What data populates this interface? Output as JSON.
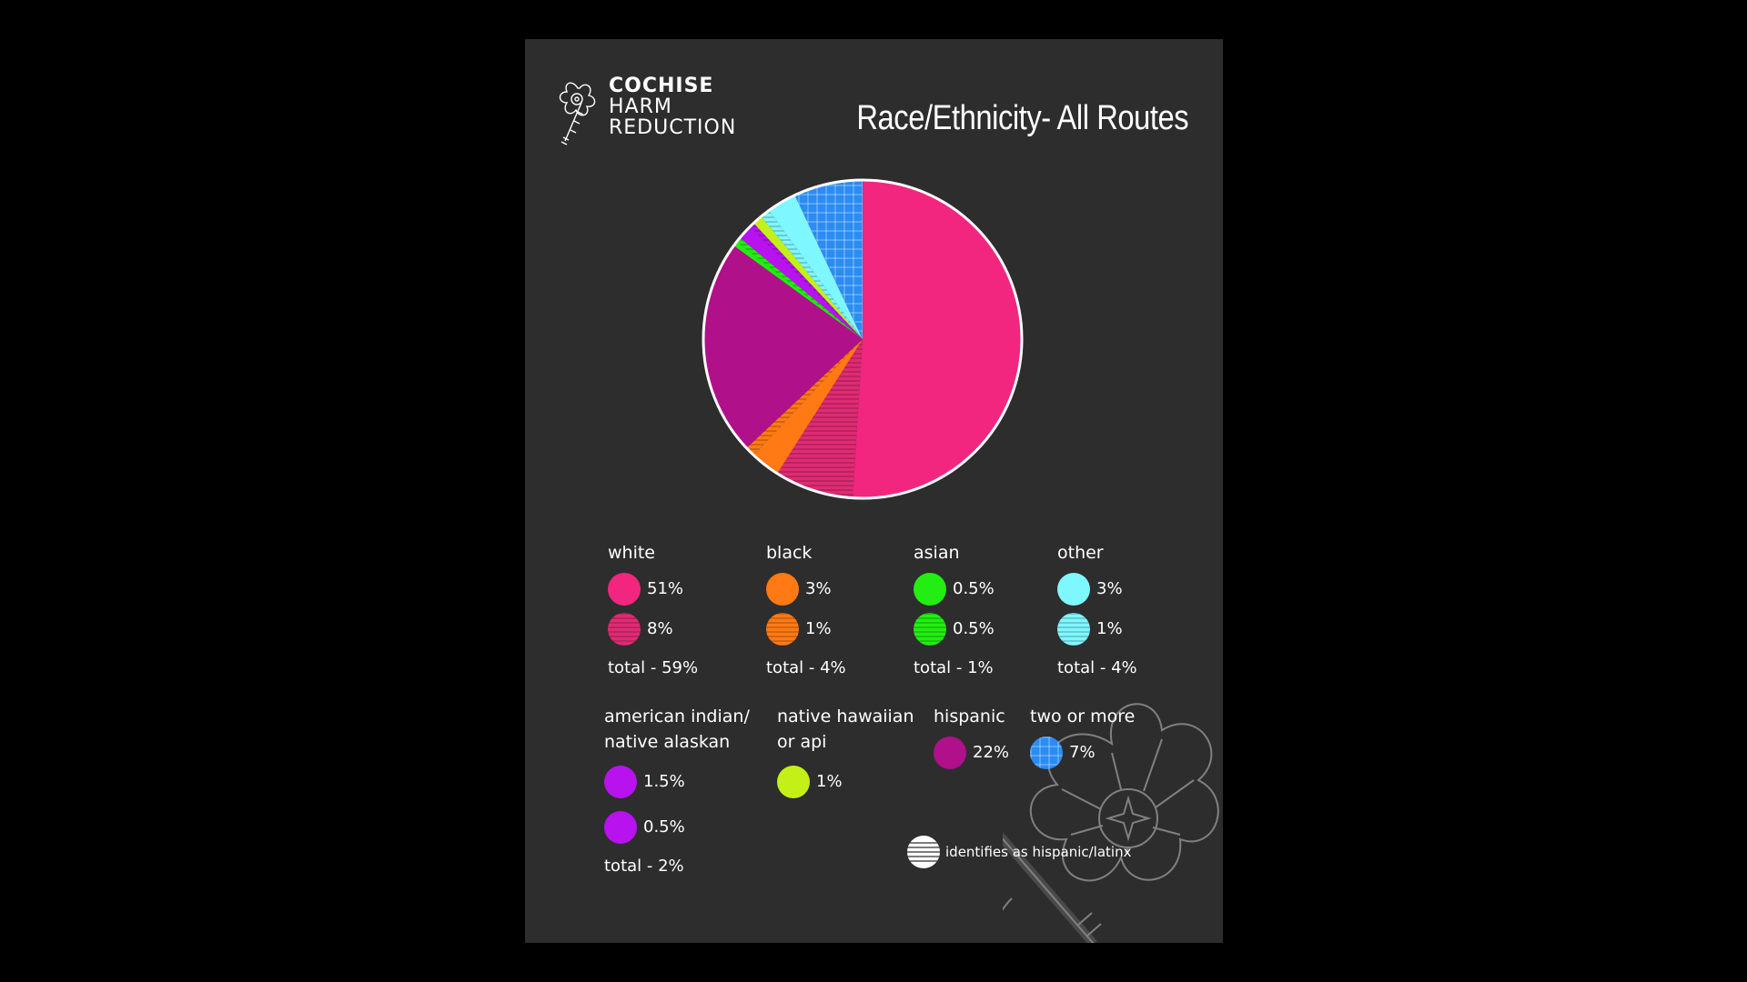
{
  "brand": {
    "line1": "COCHISE",
    "line2": "HARM",
    "line3": "REDUCTION",
    "logo_icon": "flower-syringe-logo"
  },
  "title": "Race/Ethnicity- All Routes",
  "colors": {
    "white": "#f2267e",
    "white_hispanic": "#e02b74",
    "black": "#ff7a14",
    "asian": "#22ee11",
    "other": "#7ff7ff",
    "american_indian": "#b812ef",
    "native_hawaiian": "#c4f018",
    "hispanic": "#b0108a",
    "two_or_more": "#2b8cf3",
    "hatch_note": "#ffffff"
  },
  "chart_data": {
    "type": "pie",
    "title": "Race/Ethnicity- All Routes",
    "slices": [
      {
        "label": "white",
        "value": 51,
        "color": "#f2267e",
        "hatched": false
      },
      {
        "label": "white",
        "value": 8,
        "color": "#e02b74",
        "hatched": true
      },
      {
        "label": "black",
        "value": 3,
        "color": "#ff7a14",
        "hatched": false
      },
      {
        "label": "black",
        "value": 1,
        "color": "#ff7a14",
        "hatched": true
      },
      {
        "label": "hispanic",
        "value": 22,
        "color": "#b0108a",
        "hatched": false
      },
      {
        "label": "asian",
        "value": 0.5,
        "color": "#22ee11",
        "hatched": false
      },
      {
        "label": "asian",
        "value": 0.5,
        "color": "#22ee11",
        "hatched": true
      },
      {
        "label": "american indian/ native alaskan",
        "value": 1.5,
        "color": "#b812ef",
        "hatched": false
      },
      {
        "label": "american indian/ native alaskan",
        "value": 0.5,
        "color": "#b812ef",
        "hatched": true
      },
      {
        "label": "native hawaiian or api",
        "value": 1,
        "color": "#c4f018",
        "hatched": false
      },
      {
        "label": "other",
        "value": 1,
        "color": "#7ff7ff",
        "hatched": true
      },
      {
        "label": "other",
        "value": 3,
        "color": "#7ff7ff",
        "hatched": false
      },
      {
        "label": "two or more",
        "value": 7,
        "color": "#2b8cf3",
        "hatched": "grid"
      }
    ]
  },
  "legend": {
    "white": {
      "name": "white",
      "v1": "51%",
      "v2": "8%",
      "total": "total  - 59%"
    },
    "black": {
      "name": "black",
      "v1": "3%",
      "v2": "1%",
      "total": "total  - 4%"
    },
    "asian": {
      "name": "asian",
      "v1": "0.5%",
      "v2": "0.5%",
      "total": "total  - 1%"
    },
    "other": {
      "name": "other",
      "v1": "3%",
      "v2": "1%",
      "total": "total  - 4%"
    },
    "american_indian": {
      "name1": "american indian/",
      "name2": "native alaskan",
      "v1": "1.5%",
      "v2": "0.5%",
      "total": "total  - 2%"
    },
    "native_hawaiian": {
      "name1": "native hawaiian",
      "name2": "or api",
      "v1": "1%"
    },
    "hispanic": {
      "name": "hispanic",
      "v1": "22%"
    },
    "two_or_more": {
      "name": "two or more",
      "v1": "7%"
    },
    "note": "identifies as hispanic/latinx"
  }
}
